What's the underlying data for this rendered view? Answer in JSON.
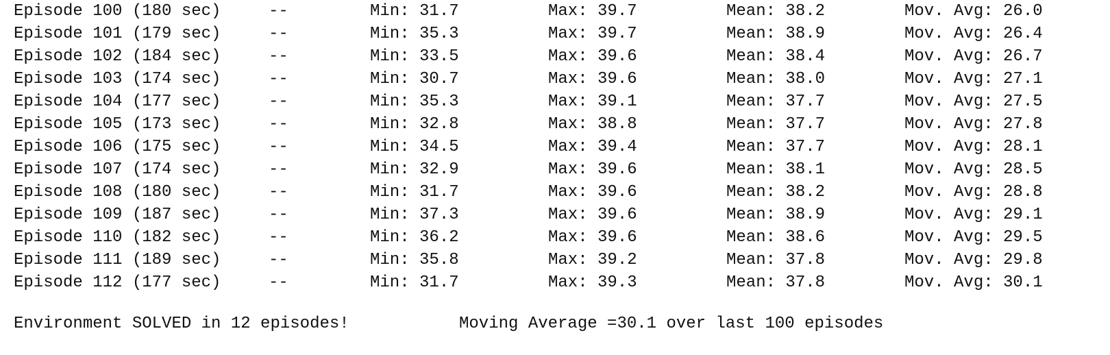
{
  "log": {
    "rows": [
      {
        "episode": "Episode 100 (180 sec)",
        "sep": "--",
        "min": "Min: 31.7",
        "max": "Max: 39.7",
        "mean": "Mean: 38.2",
        "mov_avg": "Mov. Avg: 26.0"
      },
      {
        "episode": "Episode 101 (179 sec)",
        "sep": "--",
        "min": "Min: 35.3",
        "max": "Max: 39.7",
        "mean": "Mean: 38.9",
        "mov_avg": "Mov. Avg: 26.4"
      },
      {
        "episode": "Episode 102 (184 sec)",
        "sep": "--",
        "min": "Min: 33.5",
        "max": "Max: 39.6",
        "mean": "Mean: 38.4",
        "mov_avg": "Mov. Avg: 26.7"
      },
      {
        "episode": "Episode 103 (174 sec)",
        "sep": "--",
        "min": "Min: 30.7",
        "max": "Max: 39.6",
        "mean": "Mean: 38.0",
        "mov_avg": "Mov. Avg: 27.1"
      },
      {
        "episode": "Episode 104 (177 sec)",
        "sep": "--",
        "min": "Min: 35.3",
        "max": "Max: 39.1",
        "mean": "Mean: 37.7",
        "mov_avg": "Mov. Avg: 27.5"
      },
      {
        "episode": "Episode 105 (173 sec)",
        "sep": "--",
        "min": "Min: 32.8",
        "max": "Max: 38.8",
        "mean": "Mean: 37.7",
        "mov_avg": "Mov. Avg: 27.8"
      },
      {
        "episode": "Episode 106 (175 sec)",
        "sep": "--",
        "min": "Min: 34.5",
        "max": "Max: 39.4",
        "mean": "Mean: 37.7",
        "mov_avg": "Mov. Avg: 28.1"
      },
      {
        "episode": "Episode 107 (174 sec)",
        "sep": "--",
        "min": "Min: 32.9",
        "max": "Max: 39.6",
        "mean": "Mean: 38.1",
        "mov_avg": "Mov. Avg: 28.5"
      },
      {
        "episode": "Episode 108 (180 sec)",
        "sep": "--",
        "min": "Min: 31.7",
        "max": "Max: 39.6",
        "mean": "Mean: 38.2",
        "mov_avg": "Mov. Avg: 28.8"
      },
      {
        "episode": "Episode 109 (187 sec)",
        "sep": "--",
        "min": "Min: 37.3",
        "max": "Max: 39.6",
        "mean": "Mean: 38.9",
        "mov_avg": "Mov. Avg: 29.1"
      },
      {
        "episode": "Episode 110 (182 sec)",
        "sep": "--",
        "min": "Min: 36.2",
        "max": "Max: 39.6",
        "mean": "Mean: 38.6",
        "mov_avg": "Mov. Avg: 29.5"
      },
      {
        "episode": "Episode 111 (189 sec)",
        "sep": "--",
        "min": "Min: 35.8",
        "max": "Max: 39.2",
        "mean": "Mean: 37.8",
        "mov_avg": "Mov. Avg: 29.8"
      },
      {
        "episode": "Episode 112 (177 sec)",
        "sep": "--",
        "min": "Min: 31.7",
        "max": "Max: 39.3",
        "mean": "Mean: 37.8",
        "mov_avg": "Mov. Avg: 30.1"
      }
    ],
    "summary": {
      "solved": "Environment SOLVED in 12 episodes!",
      "moving_average": "Moving Average =30.1 over last 100 episodes"
    }
  }
}
